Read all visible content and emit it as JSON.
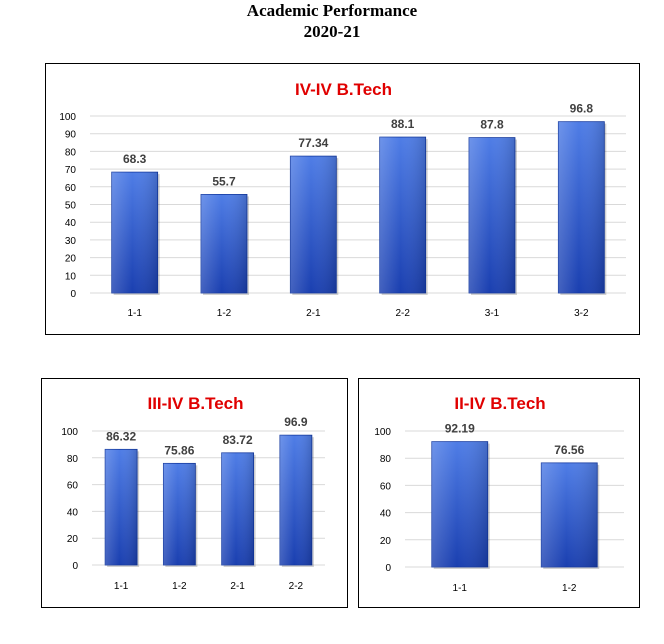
{
  "page": {
    "title": "Academic Performance",
    "subtitle": "2020-21"
  },
  "colors": {
    "bar_top": "#4f7de6",
    "bar_bottom": "#1a3fb0",
    "bar_edge": "#1238a0",
    "grid": "#d9d9d9",
    "title": "#e00000"
  },
  "chart_data": [
    {
      "type": "bar",
      "title": "IV-IV B.Tech",
      "categories": [
        "1-1",
        "1-2",
        "2-1",
        "2-2",
        "3-1",
        "3-2"
      ],
      "values": [
        68.3,
        55.7,
        77.34,
        88.1,
        87.8,
        96.8
      ],
      "value_labels": [
        "68.3",
        "55.7",
        "77.34",
        "88.1",
        "87.8",
        "96.8"
      ],
      "ylim": [
        0,
        100
      ],
      "yticks": [
        0,
        10,
        20,
        30,
        40,
        50,
        60,
        70,
        80,
        90,
        100
      ],
      "grid": true
    },
    {
      "type": "bar",
      "title": "III-IV B.Tech",
      "categories": [
        "1-1",
        "1-2",
        "2-1",
        "2-2"
      ],
      "values": [
        86.32,
        75.86,
        83.72,
        96.9
      ],
      "value_labels": [
        "86.32",
        "75.86",
        "83.72",
        "96.9"
      ],
      "ylim": [
        0,
        100
      ],
      "yticks": [
        0,
        20,
        40,
        60,
        80,
        100
      ],
      "grid": true
    },
    {
      "type": "bar",
      "title": "II-IV B.Tech",
      "categories": [
        "1-1",
        "1-2"
      ],
      "values": [
        92.19,
        76.56
      ],
      "value_labels": [
        "92.19",
        "76.56"
      ],
      "ylim": [
        0,
        100
      ],
      "yticks": [
        0,
        20,
        40,
        60,
        80,
        100
      ],
      "grid": true
    }
  ]
}
